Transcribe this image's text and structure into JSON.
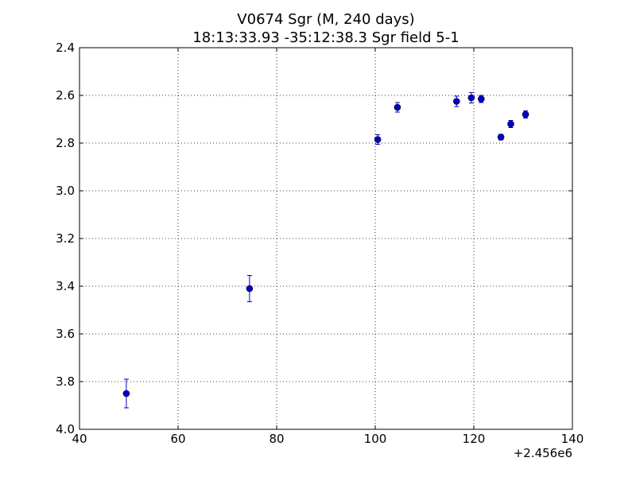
{
  "chart_data": {
    "type": "scatter",
    "title": "V0674 Sgr  (M, 240 days)",
    "subtitle": "18:13:33.93 -35:12:38.3 Sgr field 5-1",
    "xlabel": "",
    "ylabel": "",
    "x_offset_label": "+2.456e6",
    "xlim": [
      40,
      140
    ],
    "ylim": [
      2.4,
      4.0
    ],
    "y_inverted": true,
    "grid": true,
    "x_ticks": [
      40,
      60,
      80,
      100,
      120,
      140
    ],
    "x_tick_labels": [
      "40",
      "60",
      "80",
      "100",
      "120",
      "140"
    ],
    "y_ticks": [
      2.4,
      2.6,
      2.8,
      3.0,
      3.2,
      3.4,
      3.6,
      3.8,
      4.0
    ],
    "y_tick_labels": [
      "2.4",
      "2.6",
      "2.8",
      "3.0",
      "3.2",
      "3.4",
      "3.6",
      "3.8",
      "4.0"
    ],
    "marker_color": "#0000cc",
    "series": [
      {
        "points": [
          {
            "x": 49.5,
            "y": 3.85,
            "err": 0.06
          },
          {
            "x": 74.5,
            "y": 3.41,
            "err": 0.055
          },
          {
            "x": 100.5,
            "y": 2.785,
            "err": 0.02
          },
          {
            "x": 104.5,
            "y": 2.65,
            "err": 0.02
          },
          {
            "x": 116.5,
            "y": 2.625,
            "err": 0.022
          },
          {
            "x": 119.5,
            "y": 2.61,
            "err": 0.022
          },
          {
            "x": 121.5,
            "y": 2.615,
            "err": 0.015
          },
          {
            "x": 125.5,
            "y": 2.775,
            "err": 0.012
          },
          {
            "x": 127.5,
            "y": 2.72,
            "err": 0.015
          },
          {
            "x": 130.5,
            "y": 2.68,
            "err": 0.015
          }
        ]
      }
    ]
  }
}
